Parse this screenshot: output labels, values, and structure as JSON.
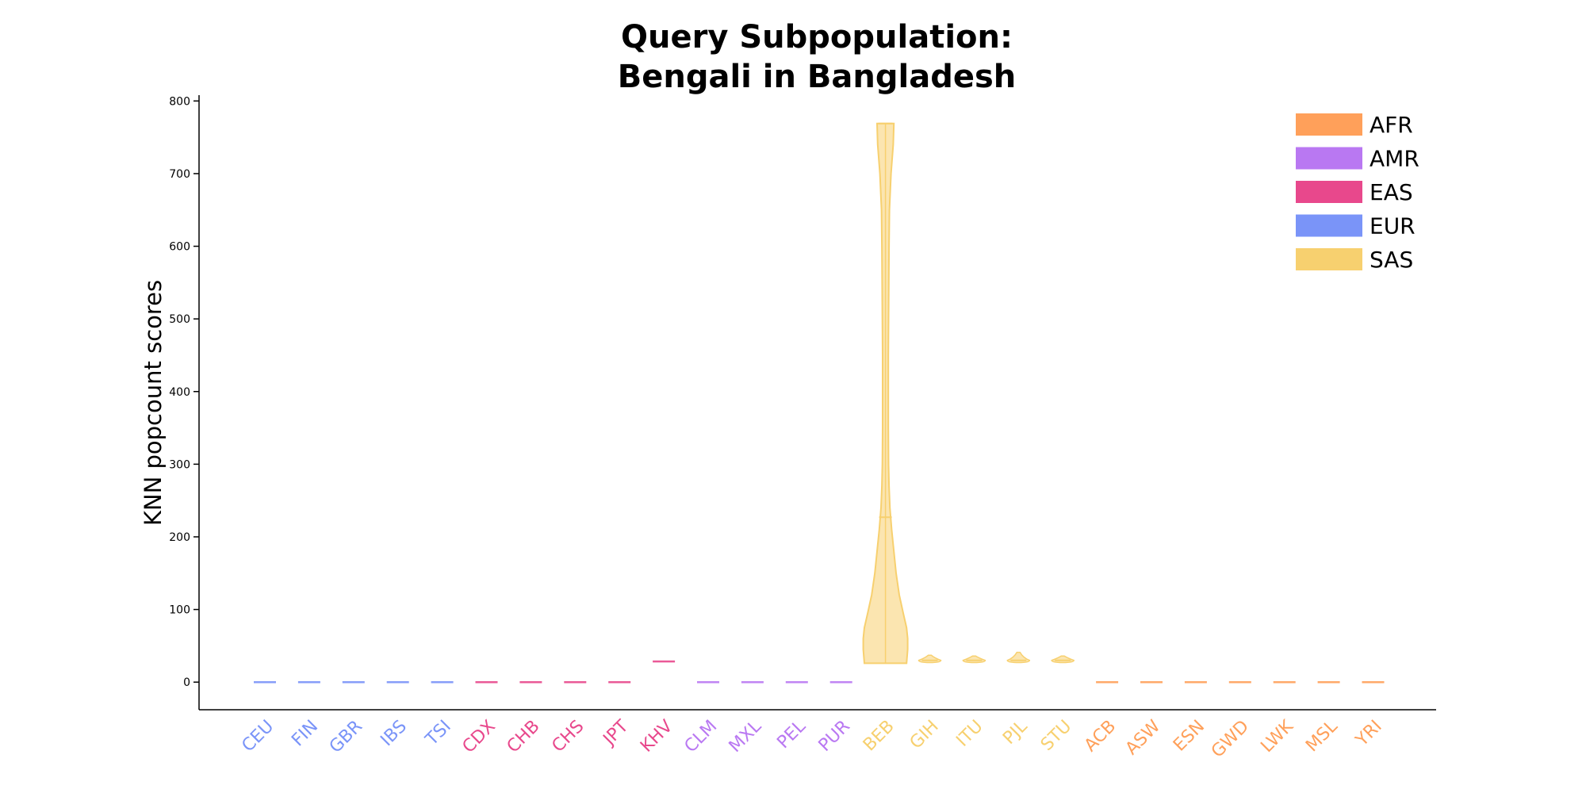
{
  "chart_data": {
    "type": "violin",
    "title_lines": [
      "Query Subpopulation:",
      "Bengali in Bangladesh"
    ],
    "xlabel": "",
    "ylabel": "KNN popcount scores",
    "ylim": [
      -38,
      808
    ],
    "yticks": [
      0,
      100,
      200,
      300,
      400,
      500,
      600,
      700,
      800
    ],
    "grid": false,
    "legend_position": "top-right",
    "legend": [
      {
        "label": "AFR",
        "color": "#FFA05A"
      },
      {
        "label": "AMR",
        "color": "#B978F2"
      },
      {
        "label": "EAS",
        "color": "#E8488C"
      },
      {
        "label": "EUR",
        "color": "#7A94F8"
      },
      {
        "label": "SAS",
        "color": "#F7D06F"
      }
    ],
    "categories": [
      {
        "label": "CEU",
        "group": "EUR",
        "min": 0,
        "max": 0,
        "mean": 0
      },
      {
        "label": "FIN",
        "group": "EUR",
        "min": 0,
        "max": 0,
        "mean": 0
      },
      {
        "label": "GBR",
        "group": "EUR",
        "min": 0,
        "max": 0,
        "mean": 0
      },
      {
        "label": "IBS",
        "group": "EUR",
        "min": 0,
        "max": 0,
        "mean": 0
      },
      {
        "label": "TSI",
        "group": "EUR",
        "min": 0,
        "max": 0,
        "mean": 0
      },
      {
        "label": "CDX",
        "group": "EAS",
        "min": 0,
        "max": 0,
        "mean": 0
      },
      {
        "label": "CHB",
        "group": "EAS",
        "min": 0,
        "max": 0,
        "mean": 0
      },
      {
        "label": "CHS",
        "group": "EAS",
        "min": 0,
        "max": 0,
        "mean": 0
      },
      {
        "label": "JPT",
        "group": "EAS",
        "min": 0,
        "max": 0,
        "mean": 0
      },
      {
        "label": "KHV",
        "group": "EAS",
        "min": 28,
        "max": 29,
        "mean": 28.5
      },
      {
        "label": "CLM",
        "group": "AMR",
        "min": 0,
        "max": 0,
        "mean": 0
      },
      {
        "label": "MXL",
        "group": "AMR",
        "min": 0,
        "max": 0,
        "mean": 0
      },
      {
        "label": "PEL",
        "group": "AMR",
        "min": 0,
        "max": 0,
        "mean": 0
      },
      {
        "label": "PUR",
        "group": "AMR",
        "min": 0,
        "max": 0,
        "mean": 0
      },
      {
        "label": "BEB",
        "group": "SAS",
        "min": 26,
        "max": 769,
        "mean": 227
      },
      {
        "label": "GIH",
        "group": "SAS",
        "min": 27,
        "max": 37,
        "mean": 30
      },
      {
        "label": "ITU",
        "group": "SAS",
        "min": 27,
        "max": 36,
        "mean": 30
      },
      {
        "label": "PJL",
        "group": "SAS",
        "min": 27,
        "max": 41,
        "mean": 30
      },
      {
        "label": "STU",
        "group": "SAS",
        "min": 27,
        "max": 36,
        "mean": 30
      },
      {
        "label": "ACB",
        "group": "AFR",
        "min": 0,
        "max": 0,
        "mean": 0
      },
      {
        "label": "ASW",
        "group": "AFR",
        "min": 0,
        "max": 0,
        "mean": 0
      },
      {
        "label": "ESN",
        "group": "AFR",
        "min": 0,
        "max": 0,
        "mean": 0
      },
      {
        "label": "GWD",
        "group": "AFR",
        "min": 0,
        "max": 0,
        "mean": 0
      },
      {
        "label": "LWK",
        "group": "AFR",
        "min": 0,
        "max": 0,
        "mean": 0
      },
      {
        "label": "MSL",
        "group": "AFR",
        "min": 0,
        "max": 0,
        "mean": 0
      },
      {
        "label": "YRI",
        "group": "AFR",
        "min": 0,
        "max": 0,
        "mean": 0
      }
    ],
    "beb_density_profile": [
      [
        26,
        0.95
      ],
      [
        45,
        1.0
      ],
      [
        60,
        1.0
      ],
      [
        75,
        0.95
      ],
      [
        95,
        0.8
      ],
      [
        120,
        0.62
      ],
      [
        150,
        0.48
      ],
      [
        180,
        0.38
      ],
      [
        210,
        0.28
      ],
      [
        240,
        0.2
      ],
      [
        270,
        0.16
      ],
      [
        300,
        0.14
      ],
      [
        350,
        0.13
      ],
      [
        400,
        0.13
      ],
      [
        450,
        0.13
      ],
      [
        500,
        0.14
      ],
      [
        550,
        0.15
      ],
      [
        600,
        0.16
      ],
      [
        650,
        0.18
      ],
      [
        700,
        0.25
      ],
      [
        740,
        0.35
      ],
      [
        769,
        0.38
      ]
    ]
  }
}
